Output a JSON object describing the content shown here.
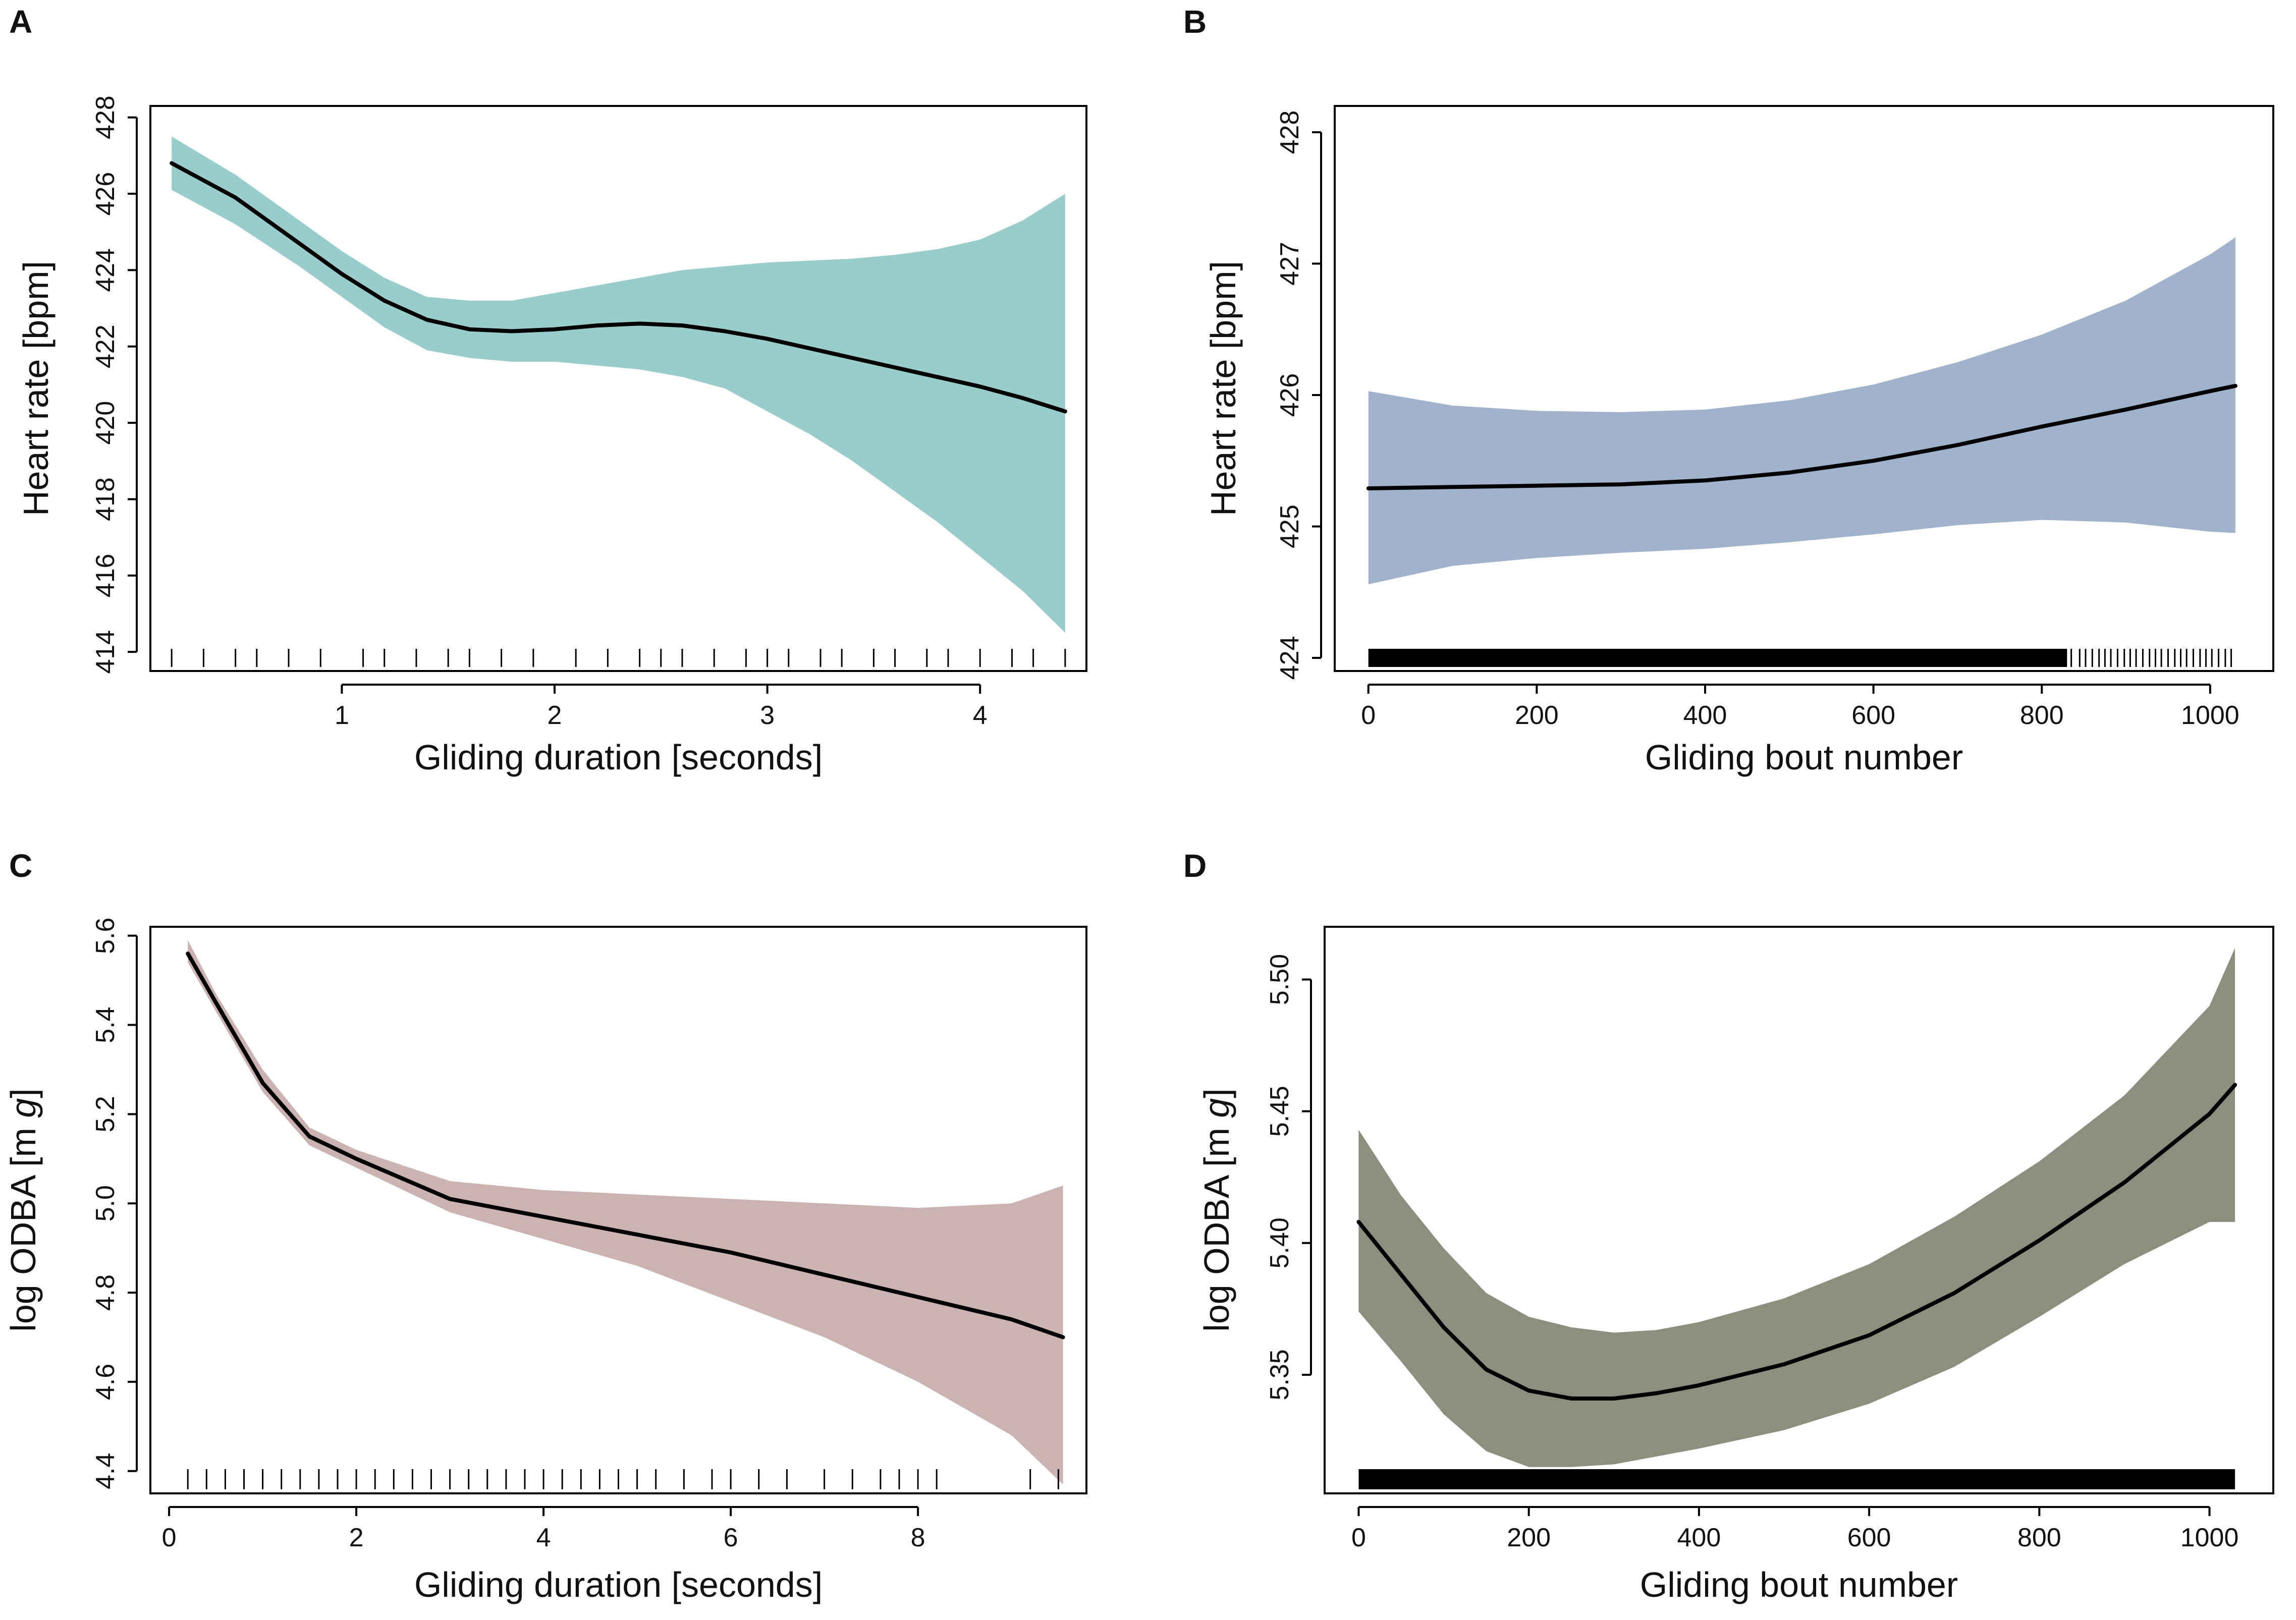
{
  "chart_data": [
    {
      "panel": "A",
      "type": "line",
      "xlabel": "Gliding duration [seconds]",
      "ylabel": "Heart rate [bpm]",
      "xlim": [
        0.1,
        4.5
      ],
      "ylim": [
        413.5,
        428.3
      ],
      "xticks": [
        1,
        2,
        3,
        4
      ],
      "yticks": [
        414,
        416,
        418,
        420,
        422,
        424,
        426,
        428
      ],
      "band_color": "#99cdcc",
      "x": [
        0.2,
        0.5,
        0.8,
        1.0,
        1.2,
        1.4,
        1.6,
        1.8,
        2.0,
        2.2,
        2.4,
        2.6,
        2.8,
        3.0,
        3.2,
        3.4,
        3.6,
        3.8,
        4.0,
        4.2,
        4.4
      ],
      "fit": [
        426.8,
        425.9,
        424.7,
        423.9,
        423.2,
        422.7,
        422.45,
        422.4,
        422.45,
        422.55,
        422.6,
        422.55,
        422.4,
        422.2,
        421.95,
        421.7,
        421.45,
        421.2,
        420.95,
        420.65,
        420.3
      ],
      "lower": [
        426.1,
        425.2,
        424.1,
        423.3,
        422.5,
        421.9,
        421.7,
        421.6,
        421.6,
        421.5,
        421.4,
        421.2,
        420.9,
        420.3,
        419.7,
        419.0,
        418.2,
        417.4,
        416.5,
        415.6,
        414.5
      ],
      "upper": [
        427.5,
        426.5,
        425.3,
        424.5,
        423.8,
        423.3,
        423.2,
        423.2,
        423.4,
        423.6,
        423.8,
        424.0,
        424.1,
        424.2,
        424.25,
        424.3,
        424.4,
        424.55,
        424.8,
        425.3,
        426.0
      ],
      "rug": [
        0.2,
        0.35,
        0.5,
        0.6,
        0.75,
        0.9,
        1.1,
        1.2,
        1.35,
        1.5,
        1.6,
        1.75,
        1.9,
        2.1,
        2.25,
        2.4,
        2.5,
        2.6,
        2.75,
        2.9,
        3.0,
        3.1,
        3.25,
        3.35,
        3.5,
        3.6,
        3.75,
        3.85,
        4.0,
        4.15,
        4.25,
        4.4
      ]
    },
    {
      "panel": "B",
      "type": "line",
      "xlabel": "Gliding bout number",
      "ylabel": "Heart rate [bpm]",
      "xlim": [
        -40,
        1075
      ],
      "ylim": [
        423.9,
        428.2
      ],
      "xticks": [
        0,
        200,
        400,
        600,
        800,
        1000
      ],
      "yticks": [
        424,
        425,
        426,
        427,
        428
      ],
      "band_color": "#a0b2cc",
      "x": [
        0,
        100,
        200,
        300,
        400,
        500,
        600,
        700,
        800,
        900,
        1000,
        1030
      ],
      "fit": [
        425.29,
        425.3,
        425.31,
        425.32,
        425.35,
        425.41,
        425.5,
        425.62,
        425.76,
        425.89,
        426.03,
        426.07
      ],
      "lower": [
        424.56,
        424.7,
        424.76,
        424.8,
        424.83,
        424.88,
        424.94,
        425.01,
        425.05,
        425.03,
        424.96,
        424.95
      ],
      "upper": [
        426.03,
        425.92,
        425.88,
        425.87,
        425.89,
        425.96,
        426.08,
        426.25,
        426.46,
        426.72,
        427.07,
        427.2
      ],
      "rug_block": [
        0,
        830
      ],
      "rug": [
        835,
        845,
        852,
        860,
        868,
        875,
        882,
        890,
        898,
        905,
        912,
        920,
        928,
        935,
        942,
        950,
        958,
        965,
        972,
        980,
        988,
        995,
        1002,
        1010,
        1018,
        1025
      ]
    },
    {
      "panel": "C",
      "type": "line",
      "xlabel": "Gliding duration [seconds]",
      "ylabel_text": "log ODBA [m ",
      "ylabel_italic": "g",
      "ylabel_end": "]",
      "xlim": [
        -0.2,
        9.8
      ],
      "ylim": [
        4.35,
        5.62
      ],
      "xticks": [
        0,
        2,
        4,
        6,
        8
      ],
      "yticks": [
        4.4,
        4.6,
        4.8,
        5.0,
        5.2,
        5.4,
        5.6
      ],
      "ytick_labels": [
        "4.4",
        "4.6",
        "4.8",
        "5.0",
        "5.2",
        "5.4",
        "5.6"
      ],
      "band_color": "#cbb3b3",
      "x": [
        0.2,
        0.5,
        1.0,
        1.5,
        2.0,
        3.0,
        4.0,
        5.0,
        6.0,
        7.0,
        8.0,
        9.0,
        9.55
      ],
      "fit": [
        5.56,
        5.45,
        5.27,
        5.15,
        5.1,
        5.01,
        4.97,
        4.93,
        4.89,
        4.84,
        4.79,
        4.74,
        4.7
      ],
      "lower": [
        5.54,
        5.43,
        5.25,
        5.13,
        5.08,
        4.98,
        4.92,
        4.86,
        4.78,
        4.7,
        4.6,
        4.48,
        4.37
      ],
      "upper": [
        5.59,
        5.47,
        5.3,
        5.17,
        5.12,
        5.05,
        5.03,
        5.02,
        5.01,
        5.0,
        4.99,
        5.0,
        5.04
      ],
      "rug": [
        0.2,
        0.4,
        0.6,
        0.8,
        1.0,
        1.2,
        1.4,
        1.6,
        1.8,
        2.0,
        2.2,
        2.4,
        2.6,
        2.8,
        3.0,
        3.2,
        3.4,
        3.6,
        3.8,
        4.0,
        4.2,
        4.4,
        4.6,
        4.8,
        5.0,
        5.2,
        5.5,
        5.8,
        6.0,
        6.3,
        6.6,
        7.0,
        7.3,
        7.6,
        7.8,
        8.0,
        8.2,
        9.2,
        9.5
      ]
    },
    {
      "panel": "D",
      "type": "line",
      "xlabel": "Gliding bout number",
      "ylabel_text": "log ODBA [m ",
      "ylabel_italic": "g",
      "ylabel_end": "]",
      "xlim": [
        -40,
        1075
      ],
      "ylim": [
        5.305,
        5.52
      ],
      "xticks": [
        0,
        200,
        400,
        600,
        800,
        1000
      ],
      "yticks": [
        5.35,
        5.4,
        5.45,
        5.5
      ],
      "ytick_labels": [
        "5.35",
        "5.40",
        "5.45",
        "5.50"
      ],
      "band_color": "#8b8f7d",
      "x": [
        0,
        50,
        100,
        150,
        200,
        250,
        300,
        350,
        400,
        500,
        600,
        700,
        800,
        900,
        1000,
        1030
      ],
      "fit": [
        5.408,
        5.388,
        5.368,
        5.352,
        5.344,
        5.341,
        5.341,
        5.343,
        5.346,
        5.354,
        5.365,
        5.381,
        5.401,
        5.423,
        5.449,
        5.46
      ],
      "lower": [
        5.374,
        5.355,
        5.335,
        5.321,
        5.315,
        5.315,
        5.316,
        5.319,
        5.322,
        5.329,
        5.339,
        5.353,
        5.372,
        5.392,
        5.408,
        5.408
      ],
      "upper": [
        5.443,
        5.418,
        5.398,
        5.381,
        5.372,
        5.368,
        5.366,
        5.367,
        5.37,
        5.379,
        5.392,
        5.41,
        5.431,
        5.456,
        5.49,
        5.512
      ],
      "rug_block": [
        0,
        1030
      ]
    }
  ]
}
